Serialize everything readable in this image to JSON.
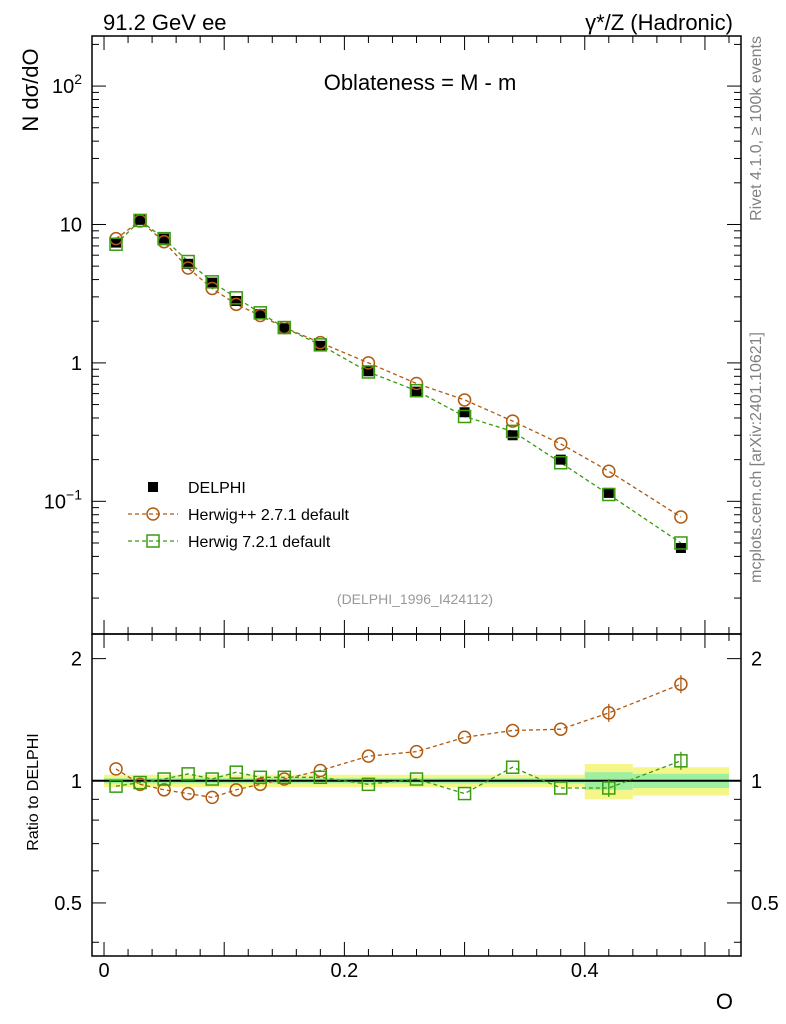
{
  "header": {
    "left": "91.2 GeV ee",
    "right": "γ*/Z (Hadronic)"
  },
  "side_labels": {
    "rivet": "Rivet 4.1.0, ≥ 100k events",
    "mcplots": "mcplots.cern.ch [arXiv:2401.10621]"
  },
  "chart_data": {
    "type": "line",
    "title": "Oblateness = M - m",
    "ylabel": "N  dσ/dO",
    "xlabel": "O",
    "ratio_ylabel": "Ratio to DELPHI",
    "analysis_tag": "(DELPHI_1996_I424112)",
    "xlim": [
      -0.01,
      0.53
    ],
    "ylim": [
      0.011,
      230
    ],
    "yscale": "log",
    "ratio_ylim": [
      0.37,
      2.3
    ],
    "ratio_yscale": "log",
    "x_ticks": [
      "0",
      "0.2",
      "0.4"
    ],
    "y_ticks": [
      "10^2",
      "10",
      "1",
      "10^-1"
    ],
    "ratio_ticks": [
      "2",
      "1",
      "0.5"
    ],
    "legend_position": "lower-left",
    "x": [
      0.01,
      0.03,
      0.05,
      0.07,
      0.09,
      0.11,
      0.13,
      0.15,
      0.18,
      0.22,
      0.26,
      0.3,
      0.34,
      0.38,
      0.42,
      0.48
    ],
    "series": [
      {
        "name": "DELPHI",
        "color": "#000000",
        "marker": "filled-square",
        "line": "none",
        "values": [
          7.4,
          10.8,
          7.9,
          5.2,
          3.8,
          2.8,
          2.25,
          1.78,
          1.33,
          0.87,
          0.62,
          0.44,
          0.3,
          0.2,
          0.115,
          0.046
        ]
      },
      {
        "name": "Herwig++ 2.7.1 default",
        "color": "#b05a10",
        "marker": "open-circle",
        "line": "dashed",
        "values": [
          7.9,
          10.6,
          7.5,
          4.85,
          3.45,
          2.65,
          2.2,
          1.8,
          1.4,
          1.0,
          0.71,
          0.54,
          0.38,
          0.26,
          0.165,
          0.077
        ]
      },
      {
        "name": "Herwig 7.2.1 default",
        "color": "#3a9a10",
        "marker": "open-square",
        "line": "dashed",
        "values": [
          7.2,
          10.7,
          7.9,
          5.4,
          3.85,
          2.95,
          2.3,
          1.8,
          1.35,
          0.86,
          0.63,
          0.41,
          0.32,
          0.19,
          0.112,
          0.05
        ]
      }
    ],
    "ratio_series": [
      {
        "name": "Herwig++ 2.7.1 default",
        "values": [
          1.07,
          0.98,
          0.95,
          0.93,
          0.91,
          0.95,
          0.98,
          1.01,
          1.06,
          1.15,
          1.18,
          1.28,
          1.33,
          1.34,
          1.47,
          1.73
        ]
      },
      {
        "name": "Herwig 7.2.1 default",
        "values": [
          0.97,
          0.99,
          1.01,
          1.04,
          1.01,
          1.05,
          1.02,
          1.02,
          1.02,
          0.98,
          1.01,
          0.93,
          1.08,
          0.96,
          0.96,
          1.12
        ]
      }
    ],
    "ratio_error_bands": [
      {
        "x_range": [
          0.0,
          0.4
        ],
        "inner": 0.015,
        "outer": 0.035
      },
      {
        "x_range": [
          0.4,
          0.44
        ],
        "inner": 0.05,
        "outer": 0.1
      },
      {
        "x_range": [
          0.44,
          0.52
        ],
        "inner": 0.04,
        "outer": 0.08
      }
    ]
  }
}
